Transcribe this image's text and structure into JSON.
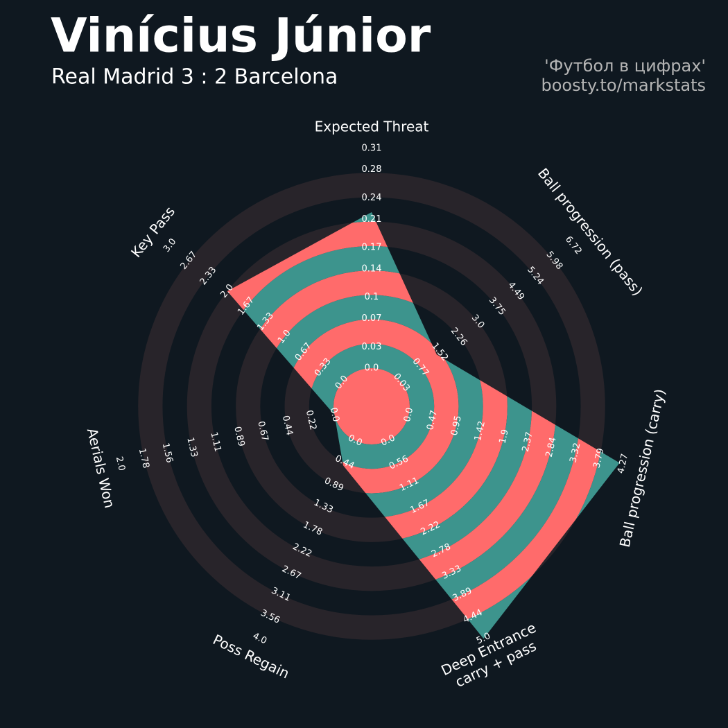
{
  "chart_data": {
    "type": "radar",
    "title": "Vinícius Júnior",
    "subtitle": "Real Madrid 3 : 2 Barcelona",
    "credits": [
      "'Футбол в цифрах'",
      "boosty.to/markstats"
    ],
    "colors": {
      "background": "#0f1820",
      "rings": "#28242a",
      "polygon": "#3d948d",
      "polygon_alt": "#ff6b6b",
      "text": "#ffffff",
      "credits": "#b4b4b4"
    },
    "params": [
      {
        "name": [
          "Expected Threat"
        ],
        "lim": [
          0,
          0.31
        ],
        "value": 0.22,
        "ticks": [
          {
            "value": 0,
            "label": "0.0"
          },
          0.03,
          0.07,
          0.1,
          0.14,
          0.17,
          0.21,
          0.24,
          0.28,
          0.31
        ]
      },
      {
        "name": [
          "Ball progression (pass)"
        ],
        "lim": [
          0.03,
          6.72
        ],
        "value": 1.4,
        "ticks": [
          0.03,
          0.77,
          1.52,
          2.26,
          {
            "value": 3,
            "label": "3.0"
          },
          3.75,
          4.49,
          5.24,
          5.98,
          6.72
        ]
      },
      {
        "name": [
          "Ball progression (carry)"
        ],
        "lim": [
          0,
          4.27
        ],
        "value": 4.2,
        "ticks": [
          {
            "value": 0,
            "label": "0.0"
          },
          0.47,
          0.95,
          1.42,
          1.9,
          2.37,
          2.84,
          3.32,
          3.79,
          4.27
        ]
      },
      {
        "name": [
          "Deep Entrance",
          "carry + pass"
        ],
        "lim": [
          0,
          5
        ],
        "value": 5,
        "ticks": [
          {
            "value": 0,
            "label": "0.0"
          },
          0.56,
          1.11,
          1.67,
          2.22,
          2.78,
          3.33,
          3.89,
          4.44,
          {
            "value": 5,
            "label": "5.0"
          }
        ]
      },
      {
        "name": [
          "Poss Regain"
        ],
        "lim": [
          0,
          4
        ],
        "value": 0.5,
        "ticks": [
          {
            "value": 0,
            "label": "0.0"
          },
          0.44,
          0.89,
          1.33,
          1.78,
          2.22,
          2.67,
          3.11,
          3.56,
          {
            "value": 4,
            "label": "4.0"
          }
        ]
      },
      {
        "name": [
          "Aerials Won"
        ],
        "lim": [
          0,
          2
        ],
        "value": 0,
        "ticks": [
          {
            "value": 0,
            "label": "0.0"
          },
          0.22,
          0.44,
          0.67,
          0.89,
          1.11,
          1.33,
          1.56,
          1.78,
          {
            "value": 2,
            "label": "2.0"
          }
        ]
      },
      {
        "name": [
          "Key Pass"
        ],
        "lim": [
          0,
          3
        ],
        "value": 2,
        "ticks": [
          {
            "value": 0,
            "label": "0.0"
          },
          0.33,
          0.67,
          {
            "value": 1,
            "label": "1.0"
          },
          1.33,
          1.67,
          {
            "value": 2,
            "label": "2.0"
          },
          2.33,
          2.67,
          {
            "value": 3,
            "label": "3.0"
          }
        ]
      }
    ]
  }
}
